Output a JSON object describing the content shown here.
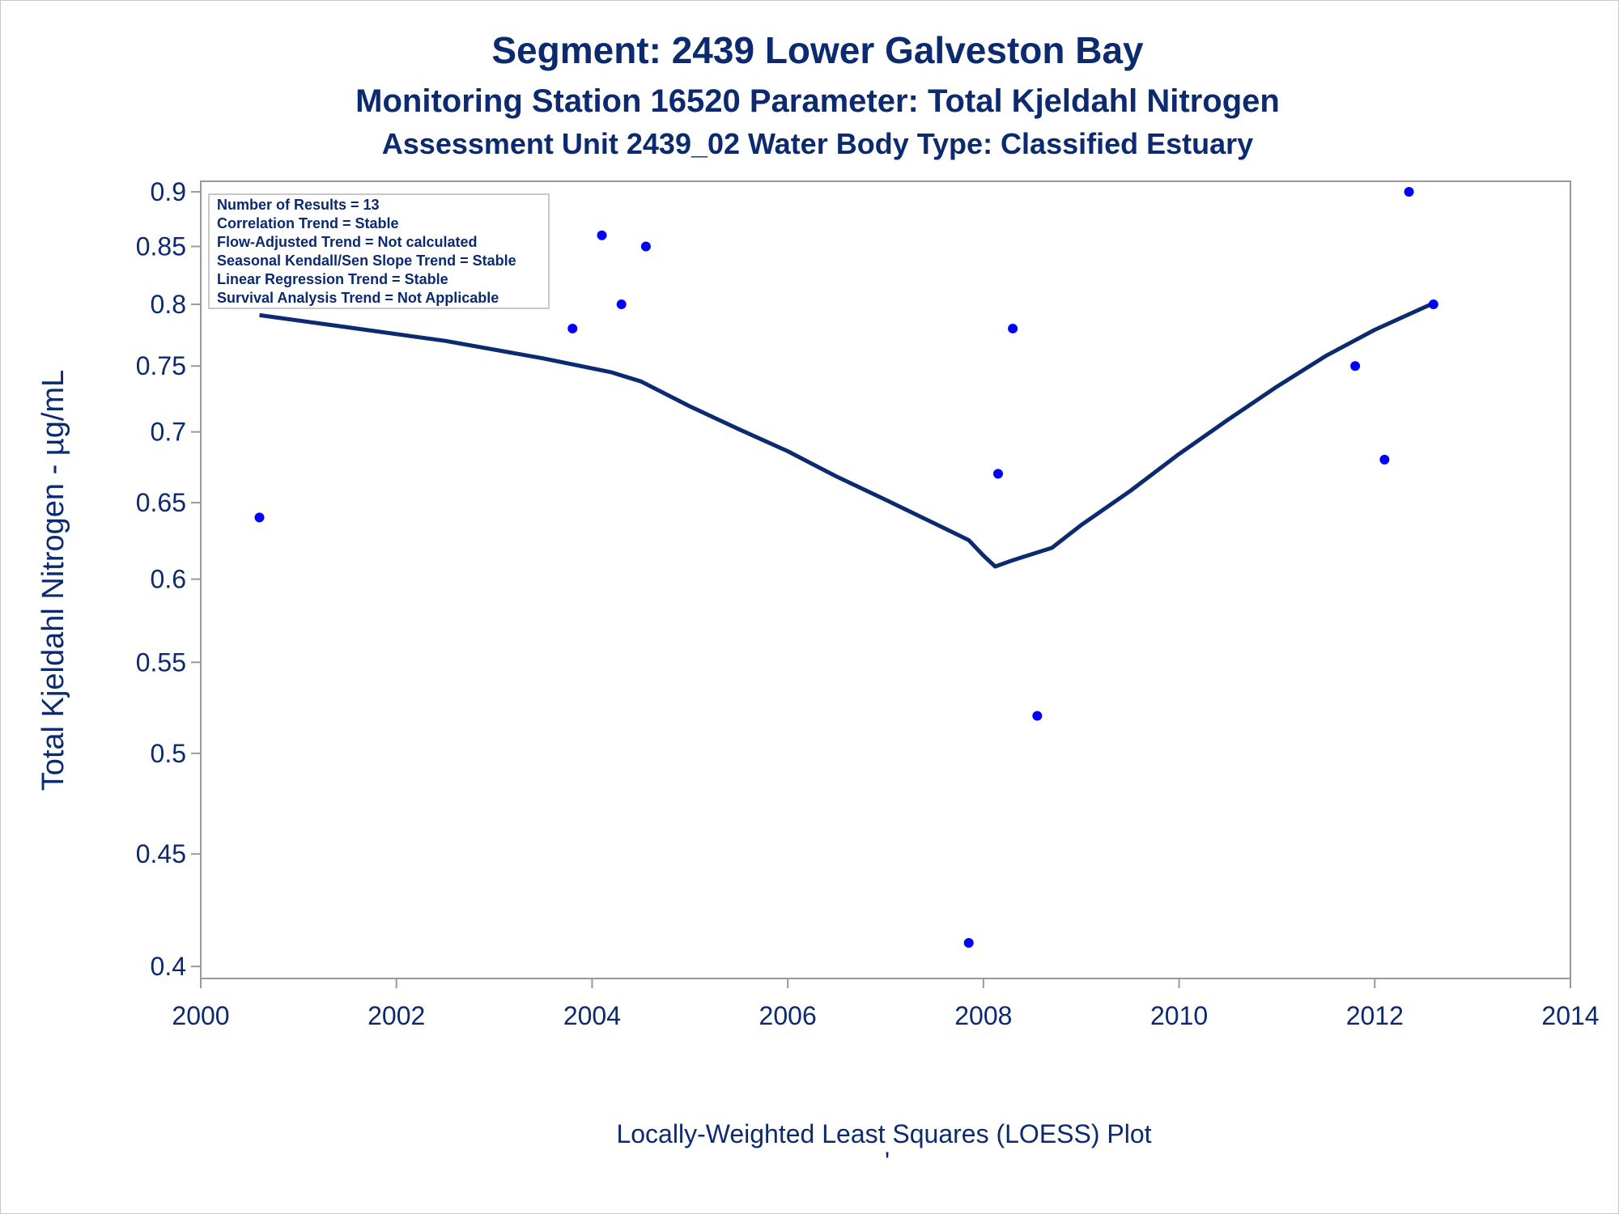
{
  "titles": [
    "Segment: 2439  Lower Galveston Bay",
    "Monitoring Station 16520 Parameter: Total Kjeldahl Nitrogen",
    "Assessment Unit 2439_02   Water Body Type: Classified Estuary"
  ],
  "footer_mark": "'",
  "info_box": [
    "Number of Results = 13",
    "Correlation Trend = Stable",
    "Flow-Adjusted Trend = Not calculated",
    "Seasonal Kendall/Sen Slope Trend = Stable",
    "Linear Regression Trend = Stable",
    "Survival Analysis Trend = Not Applicable"
  ],
  "chart_data": {
    "type": "scatter",
    "xlabel": "Locally-Weighted Least Squares (LOESS) Plot",
    "ylabel": "Total Kjeldahl Nitrogen -  µg/mL",
    "xlim": [
      2000,
      2014
    ],
    "ylim": [
      0.395,
      0.91
    ],
    "yscale": "log",
    "x_ticks": [
      2000,
      2002,
      2004,
      2006,
      2008,
      2010,
      2012,
      2014
    ],
    "y_ticks": [
      0.4,
      0.45,
      0.5,
      0.55,
      0.6,
      0.65,
      0.7,
      0.75,
      0.8,
      0.85,
      0.9
    ],
    "grid": false,
    "colors": {
      "points": "#0000ff",
      "line": "#0b2a6f",
      "text": "#0b2a6f",
      "axis": "#999999"
    },
    "points": [
      {
        "x": 2000.6,
        "y": 0.64
      },
      {
        "x": 2003.8,
        "y": 0.78
      },
      {
        "x": 2004.1,
        "y": 0.86
      },
      {
        "x": 2004.3,
        "y": 0.8
      },
      {
        "x": 2004.55,
        "y": 0.85
      },
      {
        "x": 2007.85,
        "y": 0.41
      },
      {
        "x": 2008.15,
        "y": 0.67
      },
      {
        "x": 2008.3,
        "y": 0.78
      },
      {
        "x": 2008.55,
        "y": 0.52
      },
      {
        "x": 2011.8,
        "y": 0.75
      },
      {
        "x": 2012.1,
        "y": 0.68
      },
      {
        "x": 2012.35,
        "y": 0.9
      },
      {
        "x": 2012.6,
        "y": 0.8
      }
    ],
    "loess_line": [
      {
        "x": 2000.6,
        "y": 0.791
      },
      {
        "x": 2001.5,
        "y": 0.781
      },
      {
        "x": 2002.5,
        "y": 0.77
      },
      {
        "x": 2003.5,
        "y": 0.756
      },
      {
        "x": 2004.2,
        "y": 0.745
      },
      {
        "x": 2004.5,
        "y": 0.738
      },
      {
        "x": 2005.0,
        "y": 0.719
      },
      {
        "x": 2005.5,
        "y": 0.702
      },
      {
        "x": 2006.0,
        "y": 0.686
      },
      {
        "x": 2006.5,
        "y": 0.668
      },
      {
        "x": 2007.0,
        "y": 0.652
      },
      {
        "x": 2007.5,
        "y": 0.636
      },
      {
        "x": 2007.85,
        "y": 0.625
      },
      {
        "x": 2008.0,
        "y": 0.615
      },
      {
        "x": 2008.12,
        "y": 0.608
      },
      {
        "x": 2008.3,
        "y": 0.612
      },
      {
        "x": 2008.7,
        "y": 0.62
      },
      {
        "x": 2009.0,
        "y": 0.635
      },
      {
        "x": 2009.5,
        "y": 0.658
      },
      {
        "x": 2010.0,
        "y": 0.684
      },
      {
        "x": 2010.5,
        "y": 0.709
      },
      {
        "x": 2011.0,
        "y": 0.734
      },
      {
        "x": 2011.5,
        "y": 0.758
      },
      {
        "x": 2012.0,
        "y": 0.779
      },
      {
        "x": 2012.6,
        "y": 0.801
      }
    ]
  }
}
